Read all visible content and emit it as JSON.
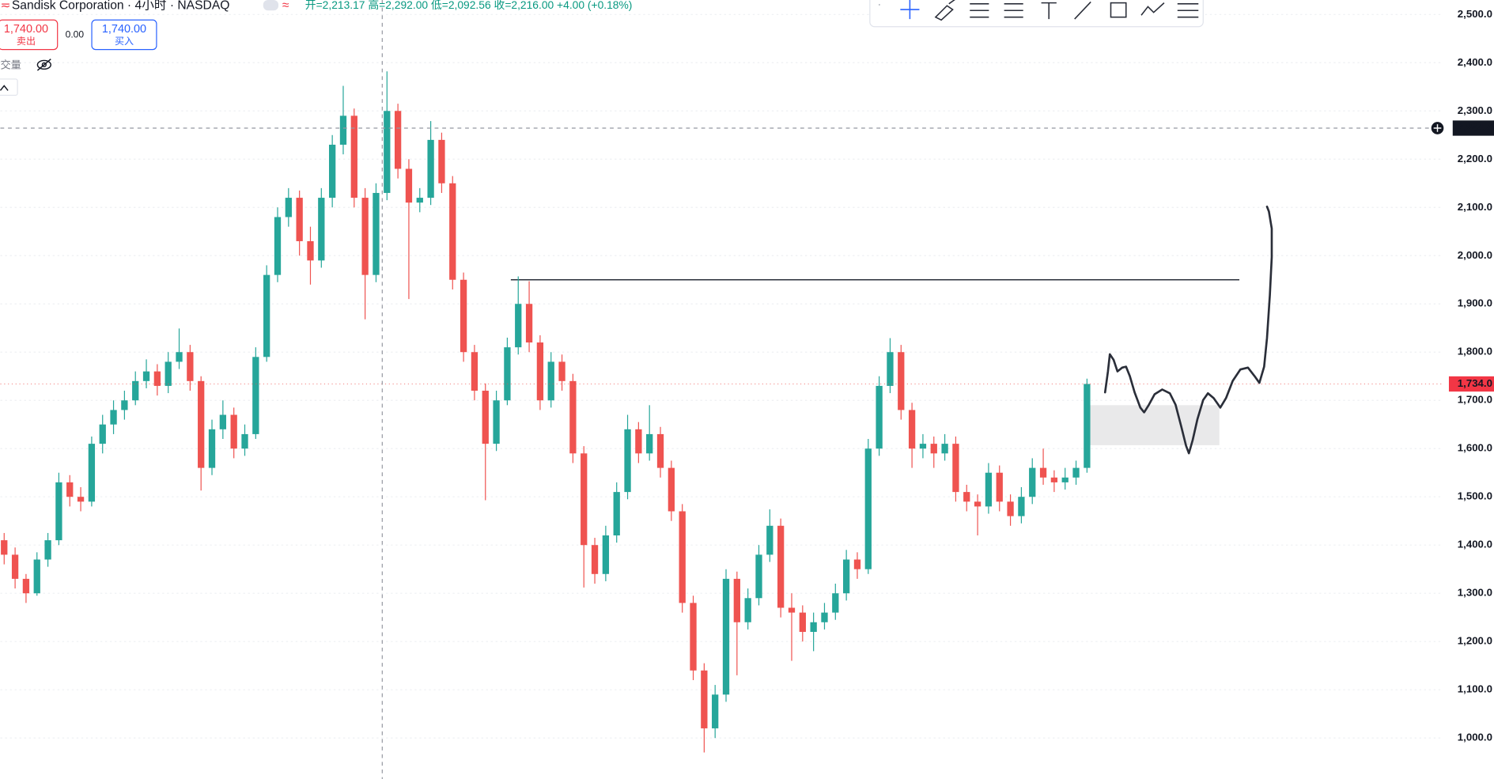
{
  "header": {
    "symbol_title": "Sandisk Corporation · 4小时 · NASDAQ",
    "ohlc_line": "开=2,213.17 高=2,292.00 低=2,092.56 收=2,216.00 +4.00 (+0.18%)"
  },
  "trade_panel": {
    "sell_price": "1,740.00",
    "sell_label": "卖出",
    "spread": "0.00",
    "buy_price": "1,740.00",
    "buy_label": "买入",
    "volume_label": "成交量"
  },
  "chart_data": {
    "type": "candlestick",
    "up_color": "#26a69a",
    "down_color": "#ef5350",
    "grid": true,
    "ylim": [
      915,
      2530
    ],
    "yticks": [
      {
        "value": 1000,
        "label": "1,000.0"
      },
      {
        "value": 1100,
        "label": "1,100.0"
      },
      {
        "value": 1200,
        "label": "1,200.0"
      },
      {
        "value": 1300,
        "label": "1,300.0"
      },
      {
        "value": 1400,
        "label": "1,400.0"
      },
      {
        "value": 1500,
        "label": "1,500.0"
      },
      {
        "value": 1600,
        "label": "1,600.0"
      },
      {
        "value": 1700,
        "label": "1,700.0"
      },
      {
        "value": 1800,
        "label": "1,800.0"
      },
      {
        "value": 1900,
        "label": "1,900.0"
      },
      {
        "value": 2000,
        "label": "2,000.0"
      },
      {
        "value": 2100,
        "label": "2,100.0"
      },
      {
        "value": 2200,
        "label": "2,200.0"
      },
      {
        "value": 2300,
        "label": "2,300.0"
      },
      {
        "value": 2400,
        "label": "2,400.0"
      },
      {
        "value": 2500,
        "label": "2,500.0"
      }
    ],
    "crosshair": {
      "value": 2264.4,
      "label": "2,264.4"
    },
    "last_price": {
      "value": 1734,
      "label": "1,734.0"
    },
    "level_line": 1950,
    "zone": [
      1607,
      1690
    ],
    "candles": [
      [
        1410,
        1425,
        1360,
        1380
      ],
      [
        1380,
        1395,
        1310,
        1330
      ],
      [
        1330,
        1340,
        1280,
        1300
      ],
      [
        1300,
        1385,
        1295,
        1370
      ],
      [
        1370,
        1425,
        1355,
        1410
      ],
      [
        1410,
        1550,
        1400,
        1530
      ],
      [
        1530,
        1545,
        1480,
        1500
      ],
      [
        1500,
        1520,
        1470,
        1490
      ],
      [
        1490,
        1625,
        1480,
        1610
      ],
      [
        1610,
        1670,
        1590,
        1650
      ],
      [
        1650,
        1700,
        1630,
        1680
      ],
      [
        1680,
        1720,
        1660,
        1700
      ],
      [
        1700,
        1760,
        1690,
        1740
      ],
      [
        1740,
        1785,
        1725,
        1760
      ],
      [
        1760,
        1775,
        1710,
        1730
      ],
      [
        1730,
        1800,
        1715,
        1780
      ],
      [
        1780,
        1849,
        1765,
        1800
      ],
      [
        1800,
        1815,
        1720,
        1740
      ],
      [
        1740,
        1750,
        1513,
        1560
      ],
      [
        1560,
        1660,
        1545,
        1640
      ],
      [
        1640,
        1700,
        1620,
        1670
      ],
      [
        1670,
        1685,
        1580,
        1600
      ],
      [
        1600,
        1650,
        1585,
        1630
      ],
      [
        1630,
        1810,
        1620,
        1790
      ],
      [
        1790,
        1980,
        1780,
        1960
      ],
      [
        1960,
        2100,
        1945,
        2080
      ],
      [
        2080,
        2140,
        2060,
        2120
      ],
      [
        2120,
        2135,
        2000,
        2030
      ],
      [
        2030,
        2060,
        1940,
        1990
      ],
      [
        1990,
        2140,
        1975,
        2120
      ],
      [
        2120,
        2250,
        2100,
        2230
      ],
      [
        2230,
        2352,
        2210,
        2290
      ],
      [
        2290,
        2305,
        2100,
        2120
      ],
      [
        2120,
        2140,
        1868,
        1960
      ],
      [
        1960,
        2150,
        1945,
        2130
      ],
      [
        2130,
        2382,
        2115,
        2300
      ],
      [
        2300,
        2315,
        2160,
        2180
      ],
      [
        2180,
        2200,
        1910,
        2110
      ],
      [
        2110,
        2140,
        2090,
        2120
      ],
      [
        2120,
        2279,
        2105,
        2240
      ],
      [
        2240,
        2255,
        2130,
        2150
      ],
      [
        2150,
        2165,
        1930,
        1950
      ],
      [
        1950,
        1965,
        1780,
        1800
      ],
      [
        1800,
        1815,
        1700,
        1720
      ],
      [
        1720,
        1735,
        1493,
        1610
      ],
      [
        1610,
        1720,
        1595,
        1700
      ],
      [
        1700,
        1830,
        1690,
        1810
      ],
      [
        1810,
        1957,
        1795,
        1900
      ],
      [
        1900,
        1947,
        1800,
        1820
      ],
      [
        1820,
        1835,
        1680,
        1700
      ],
      [
        1700,
        1800,
        1685,
        1780
      ],
      [
        1780,
        1795,
        1720,
        1740
      ],
      [
        1740,
        1755,
        1570,
        1590
      ],
      [
        1590,
        1605,
        1312,
        1400
      ],
      [
        1400,
        1415,
        1320,
        1340
      ],
      [
        1340,
        1440,
        1325,
        1420
      ],
      [
        1420,
        1530,
        1405,
        1510
      ],
      [
        1510,
        1670,
        1495,
        1640
      ],
      [
        1640,
        1655,
        1570,
        1590
      ],
      [
        1590,
        1690,
        1575,
        1630
      ],
      [
        1630,
        1645,
        1540,
        1560
      ],
      [
        1560,
        1575,
        1450,
        1470
      ],
      [
        1470,
        1485,
        1260,
        1280
      ],
      [
        1280,
        1295,
        1120,
        1140
      ],
      [
        1140,
        1155,
        970,
        1020
      ],
      [
        1020,
        1110,
        1000,
        1090
      ],
      [
        1090,
        1350,
        1075,
        1330
      ],
      [
        1330,
        1345,
        1130,
        1240
      ],
      [
        1240,
        1310,
        1225,
        1290
      ],
      [
        1290,
        1400,
        1275,
        1380
      ],
      [
        1380,
        1474,
        1365,
        1440
      ],
      [
        1440,
        1455,
        1250,
        1270
      ],
      [
        1270,
        1300,
        1160,
        1260
      ],
      [
        1260,
        1275,
        1200,
        1220
      ],
      [
        1220,
        1260,
        1180,
        1240
      ],
      [
        1240,
        1280,
        1225,
        1260
      ],
      [
        1260,
        1320,
        1245,
        1300
      ],
      [
        1300,
        1390,
        1285,
        1370
      ],
      [
        1370,
        1385,
        1330,
        1350
      ],
      [
        1350,
        1620,
        1340,
        1600
      ],
      [
        1600,
        1750,
        1585,
        1730
      ],
      [
        1730,
        1829,
        1715,
        1800
      ],
      [
        1800,
        1815,
        1660,
        1680
      ],
      [
        1680,
        1695,
        1560,
        1600
      ],
      [
        1600,
        1630,
        1580,
        1610
      ],
      [
        1610,
        1625,
        1560,
        1590
      ],
      [
        1590,
        1630,
        1575,
        1610
      ],
      [
        1610,
        1625,
        1490,
        1510
      ],
      [
        1510,
        1525,
        1470,
        1490
      ],
      [
        1490,
        1505,
        1420,
        1480
      ],
      [
        1480,
        1570,
        1465,
        1550
      ],
      [
        1550,
        1565,
        1470,
        1490
      ],
      [
        1490,
        1505,
        1440,
        1460
      ],
      [
        1460,
        1520,
        1445,
        1500
      ],
      [
        1500,
        1580,
        1485,
        1560
      ],
      [
        1560,
        1600,
        1525,
        1540
      ],
      [
        1540,
        1555,
        1510,
        1530
      ],
      [
        1530,
        1560,
        1515,
        1540
      ],
      [
        1540,
        1575,
        1525,
        1560
      ],
      [
        1560,
        1745,
        1550,
        1734
      ]
    ]
  }
}
